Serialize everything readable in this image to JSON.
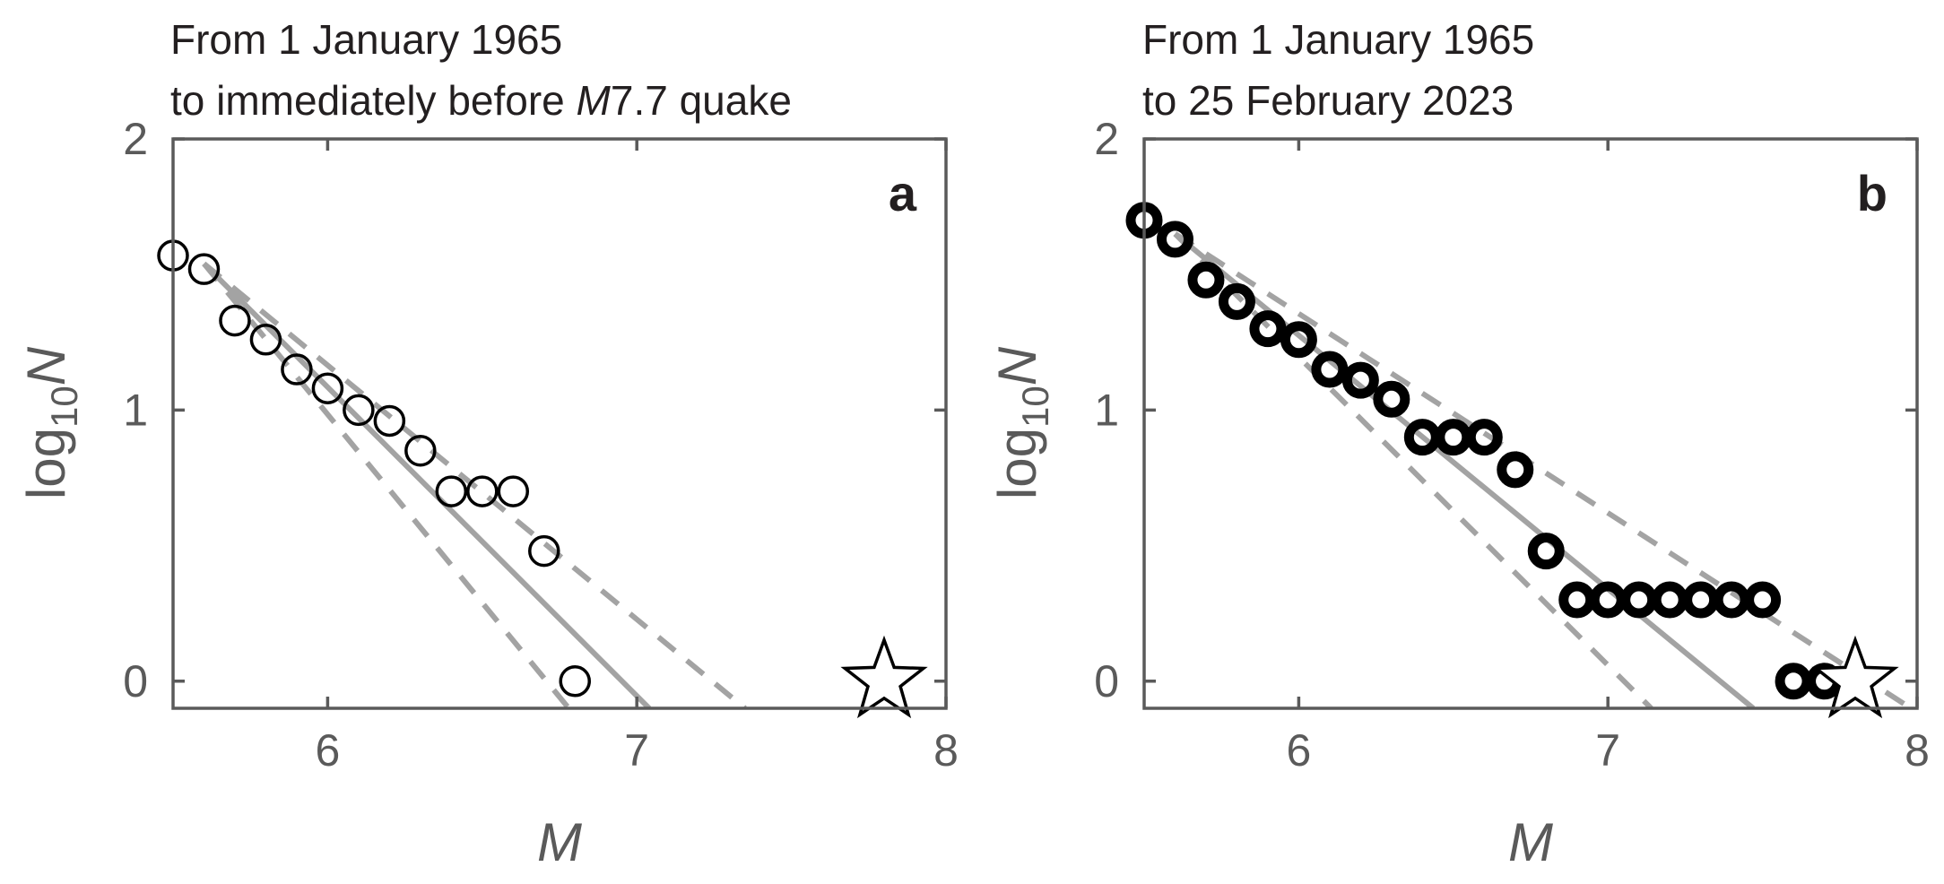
{
  "chart_data": [
    {
      "type": "scatter",
      "panel_label": "a",
      "title_lines": [
        "From 1 January 1965",
        "to immediately before ",
        "M",
        "7.7 quake"
      ],
      "xlabel": "M",
      "ylabel_main": "log",
      "ylabel_sub": "10",
      "ylabel_var": "N",
      "xlim": [
        5.5,
        8
      ],
      "ylim": [
        -0.1,
        2
      ],
      "xticks": [
        6,
        7,
        8
      ],
      "yticks": [
        0,
        1,
        2
      ],
      "xtick_labels": [
        "6",
        "7",
        "8"
      ],
      "ytick_labels": [
        "0",
        "1",
        "2"
      ],
      "points": {
        "x": [
          5.5,
          5.6,
          5.7,
          5.8,
          5.9,
          6.0,
          6.1,
          6.2,
          6.3,
          6.4,
          6.5,
          6.6,
          6.7,
          6.8
        ],
        "y": [
          1.57,
          1.52,
          1.33,
          1.26,
          1.15,
          1.08,
          1.0,
          0.96,
          0.85,
          0.7,
          0.7,
          0.7,
          0.48,
          0.0
        ]
      },
      "fit_line": [
        [
          5.6,
          1.54
        ],
        [
          7.04,
          -0.1
        ]
      ],
      "bound_lines": [
        [
          [
            5.6,
            1.54
          ],
          [
            6.78,
            -0.1
          ]
        ],
        [
          [
            5.6,
            1.54
          ],
          [
            7.35,
            -0.1
          ]
        ]
      ],
      "star": [
        7.8,
        0.0
      ],
      "marker_style": "thin"
    },
    {
      "type": "scatter",
      "panel_label": "b",
      "title_lines": [
        "From 1 January 1965",
        "to 25 February 2023"
      ],
      "xlabel": "M",
      "ylabel_main": "log",
      "ylabel_sub": "10",
      "ylabel_var": "N",
      "xlim": [
        5.5,
        8
      ],
      "ylim": [
        -0.1,
        2
      ],
      "xticks": [
        6,
        7,
        8
      ],
      "yticks": [
        0,
        1,
        2
      ],
      "xtick_labels": [
        "6",
        "7",
        "8"
      ],
      "ytick_labels": [
        "0",
        "1",
        "2"
      ],
      "points": {
        "x": [
          5.5,
          5.6,
          5.7,
          5.8,
          5.9,
          6.0,
          6.1,
          6.2,
          6.3,
          6.4,
          6.5,
          6.6,
          6.7,
          6.8,
          6.9,
          7.0,
          7.1,
          7.2,
          7.3,
          7.4,
          7.5,
          7.6,
          7.7
        ],
        "y": [
          1.7,
          1.63,
          1.48,
          1.4,
          1.3,
          1.26,
          1.15,
          1.11,
          1.04,
          0.9,
          0.9,
          0.9,
          0.78,
          0.48,
          0.3,
          0.3,
          0.3,
          0.3,
          0.3,
          0.3,
          0.3,
          0.0,
          0.0
        ]
      },
      "fit_line": [
        [
          5.6,
          1.65
        ],
        [
          7.47,
          -0.1
        ]
      ],
      "bound_lines": [
        [
          [
            5.6,
            1.65
          ],
          [
            7.14,
            -0.1
          ]
        ],
        [
          [
            5.6,
            1.65
          ],
          [
            7.98,
            -0.1
          ]
        ]
      ],
      "star": [
        7.8,
        0.0
      ],
      "marker_style": "bold"
    }
  ]
}
